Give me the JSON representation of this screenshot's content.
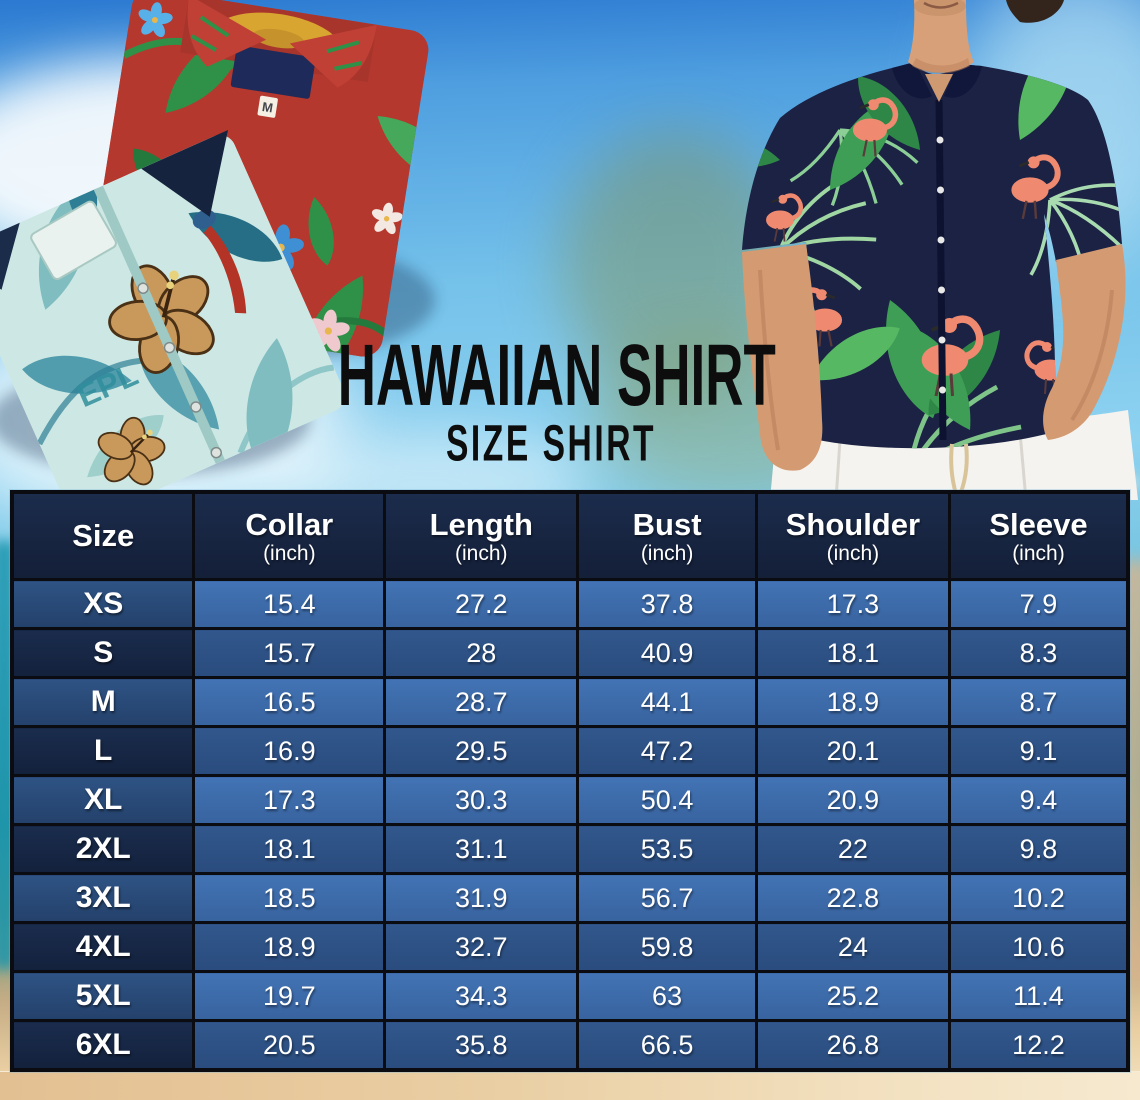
{
  "hero": {
    "title": "HAWAIIAN SHIRT",
    "subtitle": "SIZE SHIRT",
    "red_shirt_tag": "M",
    "teal_shirt_print": "EPL"
  },
  "table": {
    "columns": [
      {
        "label": "Size",
        "unit": ""
      },
      {
        "label": "Collar",
        "unit": "(inch)"
      },
      {
        "label": "Length",
        "unit": "(inch)"
      },
      {
        "label": "Bust",
        "unit": "(inch)"
      },
      {
        "label": "Shoulder",
        "unit": "(inch)"
      },
      {
        "label": "Sleeve",
        "unit": "(inch)"
      }
    ],
    "rows": [
      {
        "size": "XS",
        "values": [
          "15.4",
          "27.2",
          "37.8",
          "17.3",
          "7.9"
        ]
      },
      {
        "size": "S",
        "values": [
          "15.7",
          "28",
          "40.9",
          "18.1",
          "8.3"
        ]
      },
      {
        "size": "M",
        "values": [
          "16.5",
          "28.7",
          "44.1",
          "18.9",
          "8.7"
        ]
      },
      {
        "size": "L",
        "values": [
          "16.9",
          "29.5",
          "47.2",
          "20.1",
          "9.1"
        ]
      },
      {
        "size": "XL",
        "values": [
          "17.3",
          "30.3",
          "50.4",
          "20.9",
          "9.4"
        ]
      },
      {
        "size": "2XL",
        "values": [
          "18.1",
          "31.1",
          "53.5",
          "22",
          "9.8"
        ]
      },
      {
        "size": "3XL",
        "values": [
          "18.5",
          "31.9",
          "56.7",
          "22.8",
          "10.2"
        ]
      },
      {
        "size": "4XL",
        "values": [
          "18.9",
          "32.7",
          "59.8",
          "24",
          "10.6"
        ]
      },
      {
        "size": "5XL",
        "values": [
          "19.7",
          "34.3",
          "63",
          "25.2",
          "11.4"
        ]
      },
      {
        "size": "6XL",
        "values": [
          "20.5",
          "35.8",
          "66.5",
          "26.8",
          "12.2"
        ]
      }
    ]
  },
  "colors": {
    "header_navy": "#16253f",
    "row_light_blue": "#3e6dad",
    "row_dark_blue": "#2d5386",
    "size_light": "#2e5384",
    "size_dark": "#16263f",
    "table_border": "#0a0c12",
    "sky_blue": "#74c1ea",
    "sand": "#e9cfa2",
    "title_black": "#0d0d0d",
    "shirt_red": "#b5382e",
    "shirt_teal": "#cde8e4",
    "model_shirt_navy": "#1b2244",
    "leaf_green": "#3f9e55",
    "flamingo_pink": "#ef8a70"
  },
  "chart_data": {
    "type": "table",
    "title": "Hawaiian Shirt Size Shirt",
    "columns": [
      "Size",
      "Collar (inch)",
      "Length (inch)",
      "Bust (inch)",
      "Shoulder (inch)",
      "Sleeve (inch)"
    ],
    "rows": [
      [
        "XS",
        15.4,
        27.2,
        37.8,
        17.3,
        7.9
      ],
      [
        "S",
        15.7,
        28,
        40.9,
        18.1,
        8.3
      ],
      [
        "M",
        16.5,
        28.7,
        44.1,
        18.9,
        8.7
      ],
      [
        "L",
        16.9,
        29.5,
        47.2,
        20.1,
        9.1
      ],
      [
        "XL",
        17.3,
        30.3,
        50.4,
        20.9,
        9.4
      ],
      [
        "2XL",
        18.1,
        31.1,
        53.5,
        22,
        9.8
      ],
      [
        "3XL",
        18.5,
        31.9,
        56.7,
        22.8,
        10.2
      ],
      [
        "4XL",
        18.9,
        32.7,
        59.8,
        24,
        10.6
      ],
      [
        "5XL",
        19.7,
        34.3,
        63,
        25.2,
        11.4
      ],
      [
        "6XL",
        20.5,
        35.8,
        66.5,
        26.8,
        12.2
      ]
    ]
  }
}
